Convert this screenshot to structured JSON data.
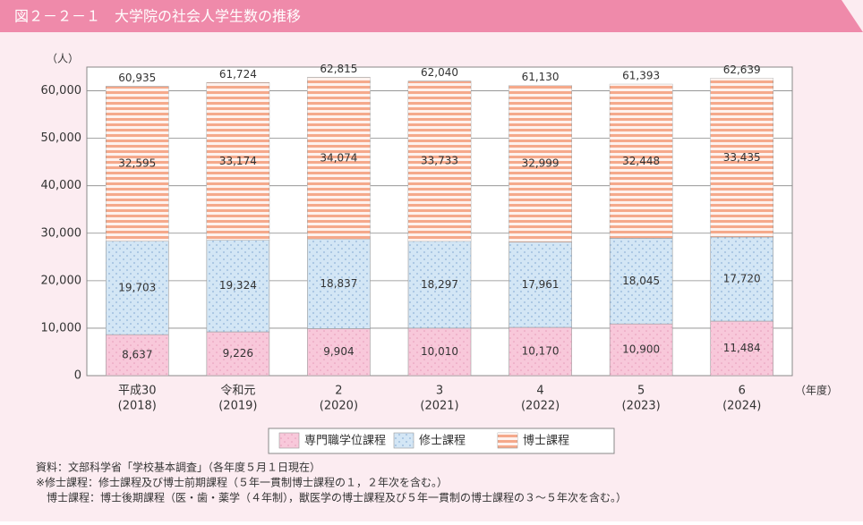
{
  "chart_data": {
    "type": "stacked-bar",
    "title": "図２－２－１　大学院の社会人学生数の推移",
    "y_unit": "（人）",
    "x_unit": "（年度）",
    "categories": [
      "平成30",
      "令和元",
      "2",
      "3",
      "4",
      "5",
      "6"
    ],
    "category_years": [
      "(2018)",
      "(2019)",
      "(2020)",
      "(2021)",
      "(2022)",
      "(2023)",
      "(2024)"
    ],
    "series": [
      {
        "name": "専門職学位課程",
        "color": "#f8c8da",
        "values": [
          8637,
          9226,
          9904,
          10010,
          10170,
          10900,
          11484
        ],
        "value_labels": [
          "8,637",
          "9,226",
          "9,904",
          "10,010",
          "10,170",
          "10,900",
          "11,484"
        ]
      },
      {
        "name": "修士課程",
        "color": "#d3e6f5",
        "values": [
          19703,
          19324,
          18837,
          18297,
          17961,
          18045,
          17720
        ],
        "value_labels": [
          "19,703",
          "19,324",
          "18,837",
          "18,297",
          "17,961",
          "18,045",
          "17,720"
        ]
      },
      {
        "name": "博士課程",
        "color": "#f5a98b",
        "values": [
          32595,
          33174,
          34074,
          33733,
          32999,
          32448,
          33435
        ],
        "value_labels": [
          "32,595",
          "33,174",
          "34,074",
          "33,733",
          "32,999",
          "32,448",
          "33,435"
        ]
      }
    ],
    "totals": {
      "values": [
        60935,
        61724,
        62815,
        62040,
        61130,
        61393,
        62639
      ],
      "value_labels": [
        "60,935",
        "61,724",
        "62,815",
        "62,040",
        "61,130",
        "61,393",
        "62,639"
      ]
    },
    "ylim": [
      0,
      65000
    ],
    "yticks": [
      0,
      {
        "value": 10000,
        "label": "10,000"
      },
      {
        "value": 20000,
        "label": "20,000"
      },
      {
        "value": 30000,
        "label": "30,000"
      },
      {
        "value": 40000,
        "label": "40,000"
      },
      {
        "value": 50000,
        "label": "50,000"
      },
      {
        "value": 60000,
        "label": "60,000"
      }
    ],
    "grid": true,
    "notes": [
      "資料：文部科学省「学校基本調査」（各年度５月１日現在）",
      "※修士課程：修士課程及び博士前期課程（５年一貫制博士課程の１，２年次を含む。）",
      "　博士課程：博士後期課程（医・歯・薬学（４年制），獣医学の博士課程及び５年一貫制の博士課程の３～５年次を含む。）"
    ]
  }
}
